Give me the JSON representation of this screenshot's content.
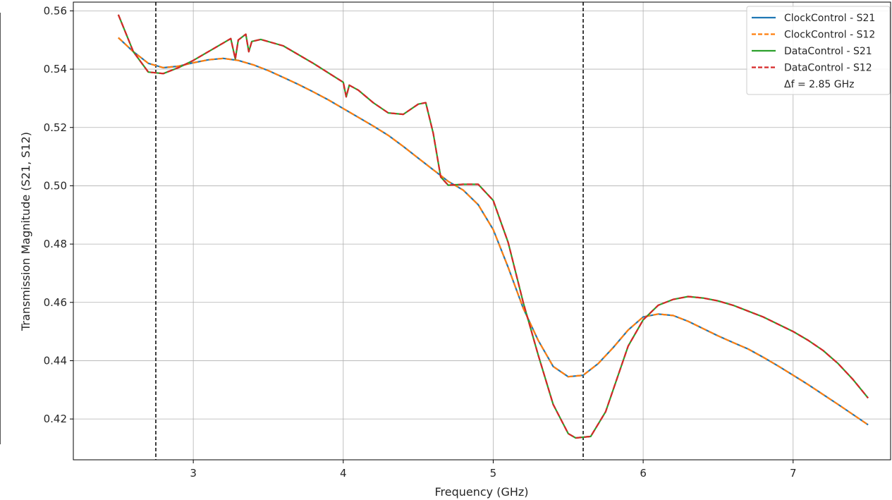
{
  "chart_data": {
    "type": "line",
    "xlabel": "Frequency (GHz)",
    "ylabel": "Transmission Magnitude (S21, S12)",
    "xlim": [
      2.2,
      7.65
    ],
    "ylim": [
      0.406,
      0.563
    ],
    "xticks": [
      3,
      4,
      5,
      6,
      7
    ],
    "yticks": [
      0.42,
      0.44,
      0.46,
      0.48,
      0.5,
      0.52,
      0.54,
      0.56
    ],
    "ytick_labels": [
      "0.42",
      "0.44",
      "0.46",
      "0.48",
      "0.50",
      "0.52",
      "0.54",
      "0.56"
    ],
    "grid": true,
    "legend_position": "top-right",
    "vlines": [
      2.75,
      5.6
    ],
    "annotation": "Δf = 2.85 GHz",
    "series": [
      {
        "name": "ClockControl - S21",
        "color": "#1f77b4",
        "style": "solid",
        "x": [
          2.5,
          2.6,
          2.7,
          2.8,
          2.9,
          3.0,
          3.1,
          3.2,
          3.3,
          3.4,
          3.5,
          3.6,
          3.7,
          3.8,
          3.9,
          4.0,
          4.1,
          4.2,
          4.3,
          4.4,
          4.5,
          4.6,
          4.7,
          4.8,
          4.9,
          5.0,
          5.1,
          5.2,
          5.3,
          5.4,
          5.5,
          5.6,
          5.7,
          5.8,
          5.9,
          6.0,
          6.1,
          6.2,
          6.3,
          6.4,
          6.5,
          6.6,
          6.7,
          6.8,
          6.9,
          7.0,
          7.1,
          7.2,
          7.3,
          7.4,
          7.5
        ],
        "y": [
          0.5508,
          0.546,
          0.542,
          0.5405,
          0.541,
          0.5422,
          0.5432,
          0.5437,
          0.543,
          0.5415,
          0.5395,
          0.5372,
          0.5348,
          0.5322,
          0.5295,
          0.5265,
          0.5235,
          0.5205,
          0.5173,
          0.5135,
          0.5095,
          0.5055,
          0.5015,
          0.4985,
          0.4935,
          0.485,
          0.472,
          0.458,
          0.447,
          0.438,
          0.4345,
          0.435,
          0.439,
          0.4445,
          0.4505,
          0.455,
          0.456,
          0.4555,
          0.4535,
          0.451,
          0.4485,
          0.4462,
          0.444,
          0.4412,
          0.4382,
          0.435,
          0.4318,
          0.4284,
          0.425,
          0.4215,
          0.418
        ]
      },
      {
        "name": "ClockControl - S12",
        "color": "#ff7f0e",
        "style": "dashed",
        "x": [
          2.5,
          2.6,
          2.7,
          2.8,
          2.9,
          3.0,
          3.1,
          3.2,
          3.3,
          3.4,
          3.5,
          3.6,
          3.7,
          3.8,
          3.9,
          4.0,
          4.1,
          4.2,
          4.3,
          4.4,
          4.5,
          4.6,
          4.7,
          4.8,
          4.9,
          5.0,
          5.1,
          5.2,
          5.3,
          5.4,
          5.5,
          5.6,
          5.7,
          5.8,
          5.9,
          6.0,
          6.1,
          6.2,
          6.3,
          6.4,
          6.5,
          6.6,
          6.7,
          6.8,
          6.9,
          7.0,
          7.1,
          7.2,
          7.3,
          7.4,
          7.5
        ],
        "y": [
          0.5508,
          0.546,
          0.542,
          0.5405,
          0.541,
          0.5422,
          0.5432,
          0.5437,
          0.543,
          0.5415,
          0.5395,
          0.5372,
          0.5348,
          0.5322,
          0.5295,
          0.5265,
          0.5235,
          0.5205,
          0.5173,
          0.5135,
          0.5095,
          0.5055,
          0.5015,
          0.4985,
          0.4935,
          0.485,
          0.472,
          0.458,
          0.447,
          0.438,
          0.4345,
          0.435,
          0.439,
          0.4445,
          0.4505,
          0.455,
          0.456,
          0.4555,
          0.4535,
          0.451,
          0.4485,
          0.4462,
          0.444,
          0.4412,
          0.4382,
          0.435,
          0.4318,
          0.4284,
          0.425,
          0.4215,
          0.418
        ]
      },
      {
        "name": "DataControl - S21",
        "color": "#2ca02c",
        "style": "solid",
        "x": [
          2.5,
          2.6,
          2.7,
          2.8,
          2.9,
          3.0,
          3.1,
          3.2,
          3.25,
          3.28,
          3.3,
          3.35,
          3.37,
          3.39,
          3.45,
          3.6,
          3.8,
          4.0,
          4.02,
          4.04,
          4.1,
          4.2,
          4.3,
          4.4,
          4.5,
          4.55,
          4.6,
          4.65,
          4.7,
          4.8,
          4.9,
          5.0,
          5.1,
          5.2,
          5.3,
          5.4,
          5.5,
          5.55,
          5.65,
          5.75,
          5.9,
          6.0,
          6.1,
          6.2,
          6.3,
          6.4,
          6.5,
          6.6,
          6.7,
          6.8,
          6.9,
          7.0,
          7.1,
          7.2,
          7.3,
          7.4,
          7.5
        ],
        "y": [
          0.5587,
          0.546,
          0.539,
          0.5385,
          0.5405,
          0.543,
          0.546,
          0.549,
          0.5505,
          0.5435,
          0.55,
          0.552,
          0.546,
          0.5495,
          0.5502,
          0.548,
          0.542,
          0.5355,
          0.5305,
          0.5345,
          0.5328,
          0.5285,
          0.525,
          0.5245,
          0.528,
          0.5285,
          0.518,
          0.503,
          0.5002,
          0.5005,
          0.5005,
          0.495,
          0.4805,
          0.46,
          0.442,
          0.425,
          0.415,
          0.4135,
          0.414,
          0.4225,
          0.445,
          0.454,
          0.459,
          0.461,
          0.462,
          0.4615,
          0.4605,
          0.459,
          0.457,
          0.455,
          0.4525,
          0.45,
          0.447,
          0.4435,
          0.439,
          0.4335,
          0.4272
        ]
      },
      {
        "name": "DataControl - S12",
        "color": "#d62728",
        "style": "dashed",
        "x": [
          2.5,
          2.6,
          2.7,
          2.8,
          2.9,
          3.0,
          3.1,
          3.2,
          3.25,
          3.28,
          3.3,
          3.35,
          3.37,
          3.39,
          3.45,
          3.6,
          3.8,
          4.0,
          4.02,
          4.04,
          4.1,
          4.2,
          4.3,
          4.4,
          4.5,
          4.55,
          4.6,
          4.65,
          4.7,
          4.8,
          4.9,
          5.0,
          5.1,
          5.2,
          5.3,
          5.4,
          5.5,
          5.55,
          5.65,
          5.75,
          5.9,
          6.0,
          6.1,
          6.2,
          6.3,
          6.4,
          6.5,
          6.6,
          6.7,
          6.8,
          6.9,
          7.0,
          7.1,
          7.2,
          7.3,
          7.4,
          7.5
        ],
        "y": [
          0.5587,
          0.546,
          0.539,
          0.5385,
          0.5405,
          0.543,
          0.546,
          0.549,
          0.5505,
          0.5435,
          0.55,
          0.552,
          0.546,
          0.5495,
          0.5502,
          0.548,
          0.542,
          0.5355,
          0.5305,
          0.5345,
          0.5328,
          0.5285,
          0.525,
          0.5245,
          0.528,
          0.5285,
          0.518,
          0.503,
          0.5002,
          0.5005,
          0.5005,
          0.495,
          0.4805,
          0.46,
          0.442,
          0.425,
          0.415,
          0.4135,
          0.414,
          0.4225,
          0.445,
          0.454,
          0.459,
          0.461,
          0.462,
          0.4615,
          0.4605,
          0.459,
          0.457,
          0.455,
          0.4525,
          0.45,
          0.447,
          0.4435,
          0.439,
          0.4335,
          0.4272
        ]
      }
    ]
  }
}
